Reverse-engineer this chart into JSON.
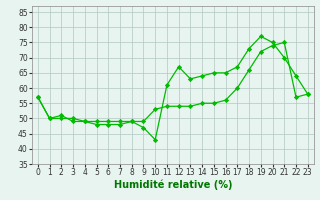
{
  "line1": {
    "x": [
      0,
      1,
      2,
      3,
      4,
      5,
      6,
      7,
      8,
      9,
      10,
      11,
      12,
      13,
      14,
      15,
      16,
      17,
      18,
      19,
      20,
      21,
      22,
      23
    ],
    "y": [
      57,
      50,
      51,
      49,
      49,
      48,
      48,
      48,
      49,
      47,
      43,
      61,
      67,
      63,
      64,
      65,
      65,
      67,
      73,
      77,
      75,
      70,
      64,
      58
    ],
    "color": "#00bb00",
    "marker": "D",
    "markersize": 2.2,
    "linewidth": 0.9
  },
  "line2": {
    "x": [
      0,
      1,
      2,
      3,
      4,
      5,
      6,
      7,
      8,
      9,
      10,
      11,
      12,
      13,
      14,
      15,
      16,
      17,
      18,
      19,
      20,
      21,
      22,
      23
    ],
    "y": [
      57,
      50,
      50,
      50,
      49,
      49,
      49,
      49,
      49,
      49,
      53,
      54,
      54,
      54,
      55,
      55,
      56,
      60,
      66,
      72,
      74,
      75,
      57,
      58
    ],
    "color": "#00bb00",
    "marker": "D",
    "markersize": 2.2,
    "linewidth": 0.9
  },
  "xlabel": "Humidité relative (%)",
  "xlim": [
    -0.5,
    23.5
  ],
  "ylim": [
    35,
    87
  ],
  "yticks": [
    35,
    40,
    45,
    50,
    55,
    60,
    65,
    70,
    75,
    80,
    85
  ],
  "xticks": [
    0,
    1,
    2,
    3,
    4,
    5,
    6,
    7,
    8,
    9,
    10,
    11,
    12,
    13,
    14,
    15,
    16,
    17,
    18,
    19,
    20,
    21,
    22,
    23
  ],
  "bg_color": "#e8f4f0",
  "grid_color": "#b0c8c0",
  "xlabel_fontsize": 7,
  "tick_fontsize": 5.5
}
